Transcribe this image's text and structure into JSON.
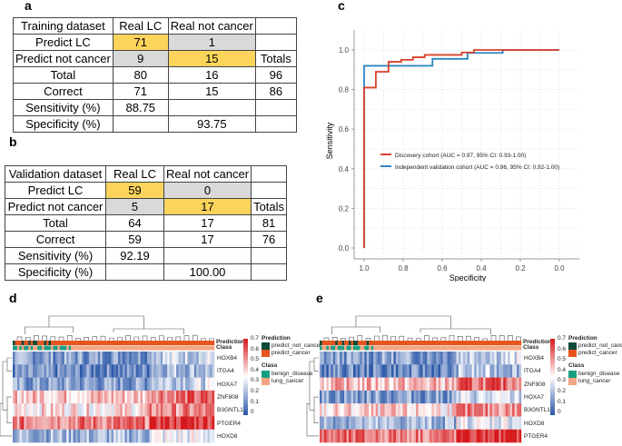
{
  "panels": {
    "a": "a",
    "b": "b",
    "c": "c",
    "d": "d",
    "e": "e"
  },
  "training": {
    "rows": [
      [
        "Training dataset",
        "Real LC",
        "Real not cancer",
        ""
      ],
      [
        "Predict LC",
        "71",
        "1",
        ""
      ],
      [
        "Predict not cancer",
        "9",
        "15",
        "Totals"
      ],
      [
        "Total",
        "80",
        "16",
        "96"
      ],
      [
        "Correct",
        "71",
        "15",
        "86"
      ],
      [
        "Sensitivity (%)",
        "88.75",
        "",
        ""
      ],
      [
        "Specificity (%)",
        "",
        "93.75",
        ""
      ]
    ]
  },
  "validation": {
    "rows": [
      [
        "Validation dataset",
        "Real LC",
        "Real not cancer",
        ""
      ],
      [
        "Predict LC",
        "59",
        "0",
        ""
      ],
      [
        "Predict not cancer",
        "5",
        "17",
        "Totals"
      ],
      [
        "Total",
        "64",
        "17",
        "81"
      ],
      [
        "Correct",
        "59",
        "17",
        "76"
      ],
      [
        "Sensitivity (%)",
        "92.19",
        "",
        ""
      ],
      [
        "Specificity (%)",
        "",
        "100.00",
        ""
      ]
    ]
  },
  "highlight_colors": {
    "correct": "#fcd45b",
    "incorrect": "#d9d9d9"
  },
  "chart_data": {
    "type": "line",
    "xlabel": "Specificity",
    "ylabel": "Sensitivity",
    "xlim": [
      1.0,
      0.0
    ],
    "ylim": [
      0.0,
      1.0
    ],
    "x_reversed": true,
    "grid": true,
    "xticks": [
      "1.0",
      "0.8",
      "0.6",
      "0.4",
      "0.2",
      "0.0"
    ],
    "yticks": [
      "0.0",
      "0.2",
      "0.4",
      "0.6",
      "0.8",
      "1.0"
    ],
    "legend_position": "center",
    "series": [
      {
        "name": "Discovery cohort (AUC = 0.97, 95% CI: 0.93-1.00)",
        "color": "#d9412b",
        "x": [
          1,
          1,
          0.94,
          0.94,
          0.875,
          0.875,
          0.81,
          0.81,
          0.75,
          0.75,
          0.69,
          0.69,
          0.5,
          0.5,
          0.4375,
          0.4375,
          0
        ],
        "y": [
          0,
          0.81,
          0.81,
          0.89,
          0.89,
          0.94,
          0.94,
          0.95,
          0.95,
          0.963,
          0.963,
          0.975,
          0.975,
          0.9875,
          0.9875,
          1,
          1
        ]
      },
      {
        "name": "Independent validation cohort (AUC = 0.96, 95% CI: 0.92-1.00)",
        "color": "#2a86c4",
        "x": [
          1,
          1,
          0.65,
          0.65,
          0.47,
          0.47,
          0.29,
          0.29,
          0
        ],
        "y": [
          0,
          0.92,
          0.92,
          0.955,
          0.955,
          0.985,
          0.985,
          1,
          1
        ]
      }
    ]
  },
  "heatmap_d": {
    "genes": [
      "HOXB4",
      "ITGA4",
      "HOXA7",
      "ZNF808",
      "B3GNTL1",
      "PTGER4",
      "HOXD8"
    ]
  },
  "heatmap_e": {
    "genes": [
      "HOXB4",
      "ITGA4",
      "ZNF808",
      "HOXA7",
      "B3GNTL1",
      "HOXD8",
      "PTGER4"
    ]
  },
  "heatmap_legend": {
    "annot_labels": [
      "Prediction",
      "Class"
    ],
    "colorbar_ticks": [
      "0.7",
      "0.6",
      "0.5",
      "0.4",
      "0.3",
      "0.2",
      "0.1",
      "0"
    ],
    "prediction_title": "Prediction",
    "prediction_items": [
      "predict_not_cancer",
      "predict_cancer"
    ],
    "class_title": "Class",
    "class_items": [
      "benign_disease",
      "lung_cancer"
    ],
    "colors": {
      "predict_not_cancer": "#0d4a3a",
      "predict_cancer": "#e8541e",
      "benign_disease": "#1a9e82",
      "lung_cancer": "#f4a582",
      "low": "#2b57a8",
      "mid": "#ffffff",
      "high": "#d7191c"
    }
  }
}
